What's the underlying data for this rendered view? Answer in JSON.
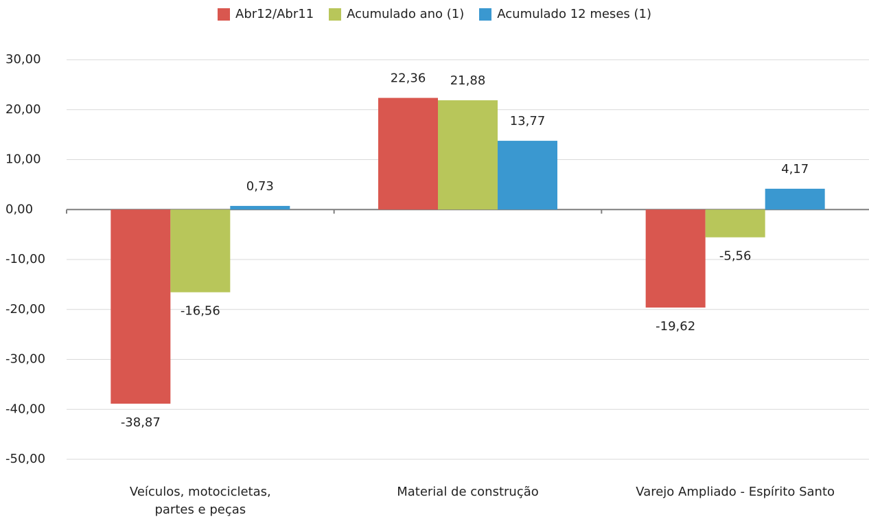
{
  "chart_data": {
    "type": "bar",
    "categories": [
      "Veículos, motocicletas, partes e peças",
      "Material de construção",
      "Varejo Ampliado - Espírito Santo"
    ],
    "series": [
      {
        "name": "Abr12/Abr11",
        "color": "#d9574f",
        "values": [
          -38.87,
          22.36,
          -19.62
        ],
        "value_labels": [
          "-38,87",
          "22,36",
          "-19,62"
        ]
      },
      {
        "name": "Acumulado ano (1)",
        "color": "#b8c65a",
        "values": [
          -16.56,
          21.88,
          -5.56
        ],
        "value_labels": [
          "-16,56",
          "21,88",
          "-5,56"
        ]
      },
      {
        "name": "Acumulado 12 meses (1)",
        "color": "#3a98d0",
        "values": [
          0.73,
          13.77,
          4.17
        ],
        "value_labels": [
          "0,73",
          "13,77",
          "4,17"
        ]
      }
    ],
    "ylim": [
      -50,
      30
    ],
    "yticks": [
      {
        "value": -50,
        "label": "-50,00"
      },
      {
        "value": -40,
        "label": "-40,00"
      },
      {
        "value": -30,
        "label": "-30,00"
      },
      {
        "value": -20,
        "label": "-20,00"
      },
      {
        "value": -10,
        "label": "-10,00"
      },
      {
        "value": 0,
        "label": "0,00"
      },
      {
        "value": 10,
        "label": "10,00"
      },
      {
        "value": 20,
        "label": "20,00"
      },
      {
        "value": 30,
        "label": "30,00"
      }
    ],
    "grid": true,
    "legend": "top"
  }
}
